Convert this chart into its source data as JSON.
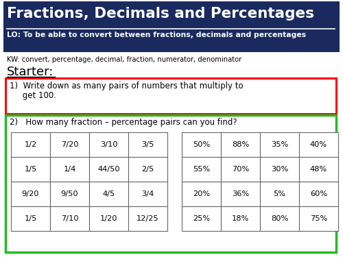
{
  "title": "Fractions, Decimals and Percentages",
  "lo": "LO: To be able to convert between fractions, decimals and percentages",
  "kw": "KW: convert, percentage, decimal, fraction, numerator, denominator",
  "starter": "Starter:",
  "q1_line1": "1)  Write down as many pairs of numbers that multiply to",
  "q1_line2": "     get 100.",
  "q2": "2)   How many fraction – percentage pairs can you find?",
  "header_bg": "#1a2a5e",
  "header_text_color": "#ffffff",
  "bg_color": "#ffffff",
  "fractions": [
    [
      "1/2",
      "7/20",
      "3/10",
      "3/5"
    ],
    [
      "1/5",
      "1/4",
      "44/50",
      "2/5"
    ],
    [
      "9/20",
      "9/50",
      "4/5",
      "3/4"
    ],
    [
      "1/5",
      "7/10",
      "1/20",
      "12/25"
    ]
  ],
  "percentages": [
    [
      "50%",
      "88%",
      "35%",
      "40%"
    ],
    [
      "55%",
      "70%",
      "30%",
      "48%"
    ],
    [
      "20%",
      "36%",
      "5%",
      "60%"
    ],
    [
      "25%",
      "18%",
      "80%",
      "75%"
    ]
  ]
}
